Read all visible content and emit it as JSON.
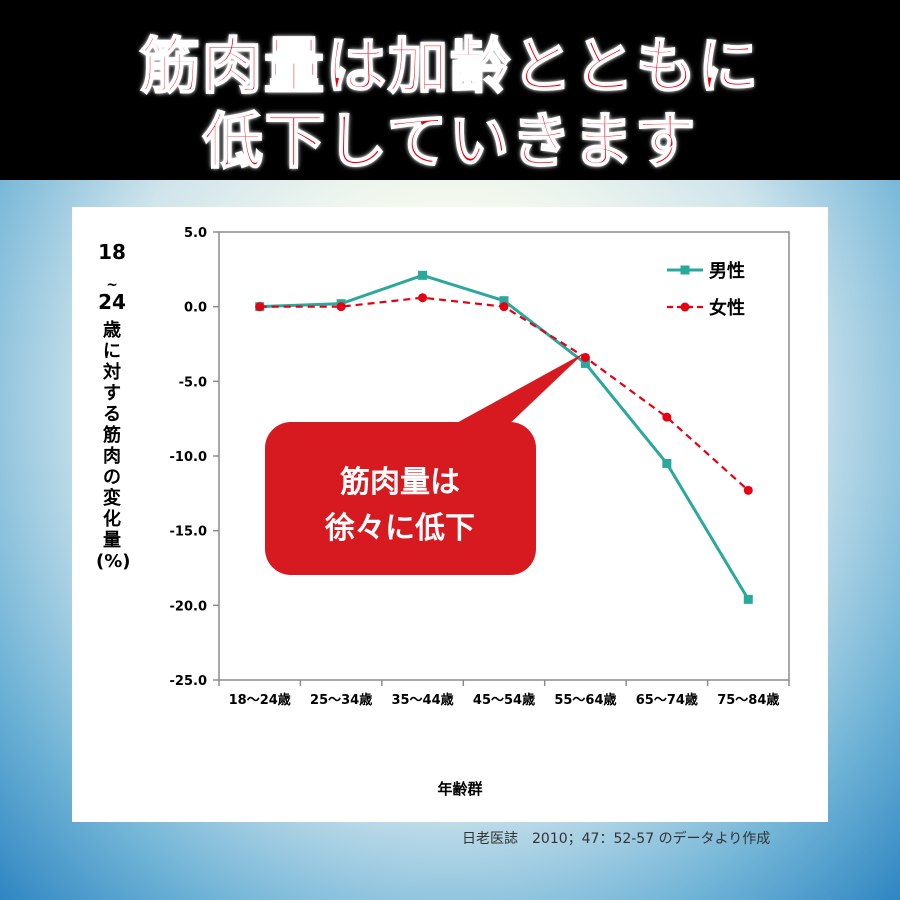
{
  "title": {
    "line1": "筋肉量は加齢とともに",
    "line2": "低下していきます"
  },
  "colors": {
    "title_text": "#e60012",
    "male": "#2aa89b",
    "female": "#e60012",
    "callout": "#d71920"
  },
  "callout": {
    "line1": "筋肉量は",
    "line2": "徐々に低下"
  },
  "y_axis_label": {
    "num1": "18",
    "tilde": "~",
    "num2": "24",
    "rest": "歳に対する筋肉の変化量(%)"
  },
  "source_note": "日老医誌　2010；47：52-57 のデータより作成",
  "chart_data": {
    "type": "line",
    "categories": [
      "18～24歳",
      "25～34歳",
      "35～44歳",
      "45～54歳",
      "55～64歳",
      "65～74歳",
      "75～84歳"
    ],
    "series": [
      {
        "name": "男性",
        "values": [
          0.0,
          0.2,
          2.1,
          0.4,
          -3.8,
          -10.5,
          -19.6
        ],
        "marker": "square",
        "line_style": "solid"
      },
      {
        "name": "女性",
        "values": [
          0.0,
          0.0,
          0.6,
          0.0,
          -3.4,
          -7.4,
          -12.3
        ],
        "marker": "circle",
        "line_style": "dashed"
      }
    ],
    "y_ticks": [
      "5.0",
      "0.0",
      "-5.0",
      "-10.0",
      "-15.0",
      "-20.0",
      "-25.0"
    ],
    "ylim": [
      -25,
      5
    ],
    "xlabel": "年齢群",
    "legend_position": "top-right",
    "grid": false
  }
}
